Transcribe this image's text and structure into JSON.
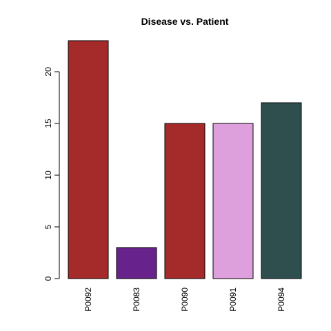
{
  "chart_data": {
    "type": "bar",
    "title": "Disease vs. Patient",
    "xlabel": "",
    "ylabel": "",
    "categories": [
      "P0092",
      "P0083",
      "P0090",
      "P0091",
      "P0094"
    ],
    "values": [
      23,
      3,
      15,
      15,
      17
    ],
    "colors": [
      "#a52a2a",
      "#68228b",
      "#a52a2a",
      "#dda0dd",
      "#2f4f4f"
    ],
    "ylim": [
      0,
      23
    ],
    "yticks": [
      0,
      5,
      10,
      15,
      20
    ],
    "grid": false,
    "legend": "none"
  }
}
